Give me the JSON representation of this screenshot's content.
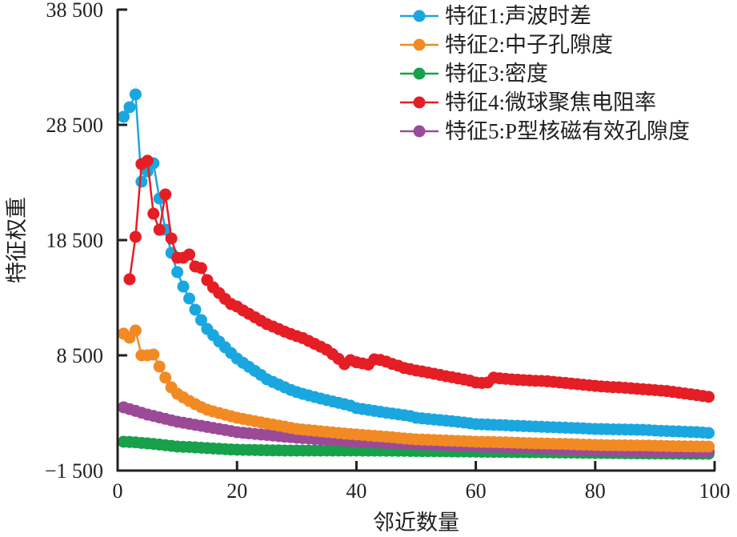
{
  "chart_data": {
    "type": "line",
    "title": "",
    "xlabel": "邻近数量",
    "ylabel": "特征权重",
    "xlim": [
      0,
      100
    ],
    "ylim": [
      -1500,
      38500
    ],
    "xticks": [
      0,
      20,
      40,
      60,
      80,
      100
    ],
    "xtick_labels": [
      "0",
      "20",
      "40",
      "60",
      "80",
      "100"
    ],
    "yticks": [
      -1500,
      8500,
      18500,
      28500,
      38500
    ],
    "ytick_labels": [
      "−1 500",
      "8 500",
      "18 500",
      "28 500",
      "38 500"
    ],
    "grid": false,
    "legend_position": "top-right",
    "series": [
      {
        "name": "特征1:声波时差",
        "color": "#1aa7e0",
        "x_start": 1,
        "values": [
          29200,
          30030,
          31140,
          23570,
          24470,
          25170,
          22110,
          19400,
          17390,
          15720,
          14470,
          13430,
          12460,
          11560,
          10790,
          10250,
          9700,
          9200,
          8700,
          8220,
          7850,
          7500,
          7150,
          6800,
          6420,
          6190,
          5960,
          5720,
          5500,
          5310,
          5160,
          5020,
          4880,
          4750,
          4620,
          4500,
          4380,
          4260,
          4130,
          3920,
          3840,
          3760,
          3680,
          3600,
          3520,
          3450,
          3380,
          3310,
          3230,
          3080,
          3030,
          2980,
          2930,
          2880,
          2830,
          2780,
          2730,
          2670,
          2610,
          2530,
          2510,
          2490,
          2470,
          2450,
          2430,
          2400,
          2380,
          2360,
          2340,
          2320,
          2300,
          2280,
          2260,
          2240,
          2220,
          2200,
          2180,
          2160,
          2130,
          2110,
          2100,
          2090,
          2080,
          2070,
          2060,
          2050,
          2040,
          2030,
          2010,
          1970,
          1950,
          1930,
          1910,
          1890,
          1870,
          1850,
          1830,
          1800,
          1760
        ]
      },
      {
        "name": "特征2:中子孔隙度",
        "color": "#f28a24",
        "x_start": 1,
        "values": [
          10380,
          10030,
          10650,
          8500,
          8500,
          8570,
          7530,
          6560,
          5720,
          5170,
          4850,
          4540,
          4260,
          4010,
          3780,
          3630,
          3490,
          3350,
          3210,
          3080,
          2980,
          2880,
          2780,
          2680,
          2580,
          2490,
          2400,
          2310,
          2210,
          2110,
          2060,
          2010,
          1960,
          1910,
          1860,
          1810,
          1760,
          1710,
          1670,
          1630,
          1590,
          1550,
          1510,
          1470,
          1430,
          1390,
          1340,
          1290,
          1250,
          1210,
          1190,
          1170,
          1150,
          1130,
          1110,
          1090,
          1070,
          1050,
          1030,
          1000,
          990,
          980,
          970,
          960,
          950,
          930,
          910,
          890,
          880,
          860,
          850,
          840,
          830,
          820,
          810,
          790,
          770,
          750,
          740,
          720,
          710,
          700,
          700,
          690,
          690,
          680,
          680,
          670,
          670,
          650,
          640,
          630,
          620,
          610,
          600,
          600,
          590,
          590,
          580
        ]
      },
      {
        "name": "特征3:密度",
        "color": "#16a14a",
        "x_start": 1,
        "values": [
          1000,
          980,
          950,
          900,
          860,
          810,
          760,
          700,
          640,
          580,
          560,
          540,
          510,
          480,
          450,
          420,
          390,
          360,
          330,
          310,
          300,
          290,
          280,
          270,
          260,
          250,
          250,
          240,
          240,
          240,
          240,
          240,
          240,
          240,
          240,
          240,
          240,
          240,
          240,
          240,
          230,
          230,
          230,
          230,
          220,
          220,
          210,
          210,
          200,
          200,
          190,
          190,
          180,
          180,
          170,
          160,
          150,
          150,
          140,
          140,
          130,
          130,
          120,
          120,
          110,
          110,
          100,
          100,
          90,
          90,
          80,
          80,
          70,
          70,
          60,
          60,
          50,
          40,
          30,
          30,
          20,
          20,
          10,
          10,
          0,
          0,
          -10,
          -10,
          -20,
          -20,
          -20,
          -30,
          -30,
          -30,
          -40,
          -40,
          -40,
          -40,
          -40
        ]
      },
      {
        "name": "特征4:微球聚焦电阻率",
        "color": "#e51e25",
        "x_start": 2,
        "values": [
          15100,
          18780,
          25100,
          25380,
          20790,
          19400,
          22460,
          18640,
          16970,
          16970,
          17250,
          16210,
          16070,
          15030,
          14400,
          13900,
          13400,
          12950,
          12740,
          12400,
          12100,
          11800,
          11500,
          11210,
          11000,
          10780,
          10550,
          10350,
          10170,
          10000,
          9750,
          9500,
          9250,
          8990,
          8600,
          8200,
          7740,
          8080,
          7900,
          7800,
          7700,
          8150,
          8100,
          7950,
          7750,
          7600,
          7400,
          7300,
          7180,
          7100,
          7000,
          6900,
          6800,
          6690,
          6600,
          6500,
          6400,
          6300,
          6140,
          6100,
          6140,
          6560,
          6500,
          6460,
          6420,
          6380,
          6350,
          6320,
          6290,
          6280,
          6250,
          6200,
          6150,
          6100,
          6050,
          6000,
          5950,
          5900,
          5850,
          5800,
          5770,
          5740,
          5720,
          5680,
          5640,
          5600,
          5560,
          5520,
          5480,
          5440,
          5400,
          5330,
          5260,
          5190,
          5120,
          5050,
          4980,
          4900
        ]
      },
      {
        "name": "特征5:P型核磁有效孔隙度",
        "color": "#9b4a97",
        "x_start": 1,
        "values": [
          3990,
          3830,
          3680,
          3520,
          3360,
          3240,
          3110,
          2990,
          2860,
          2740,
          2650,
          2560,
          2470,
          2380,
          2290,
          2200,
          2110,
          2020,
          1930,
          1830,
          1780,
          1730,
          1680,
          1630,
          1590,
          1540,
          1490,
          1440,
          1400,
          1350,
          1320,
          1290,
          1250,
          1220,
          1190,
          1160,
          1120,
          1090,
          1050,
          1000,
          980,
          960,
          940,
          920,
          900,
          880,
          860,
          840,
          820,
          790,
          770,
          750,
          730,
          710,
          690,
          670,
          650,
          630,
          610,
          580,
          570,
          560,
          550,
          540,
          530,
          520,
          510,
          500,
          490,
          440,
          420,
          400,
          380,
          360,
          340,
          320,
          300,
          280,
          260,
          250,
          240,
          230,
          220,
          210,
          210,
          200,
          200,
          190,
          190,
          180,
          180,
          180,
          170,
          170,
          170,
          170,
          170,
          170,
          170
        ]
      }
    ]
  }
}
